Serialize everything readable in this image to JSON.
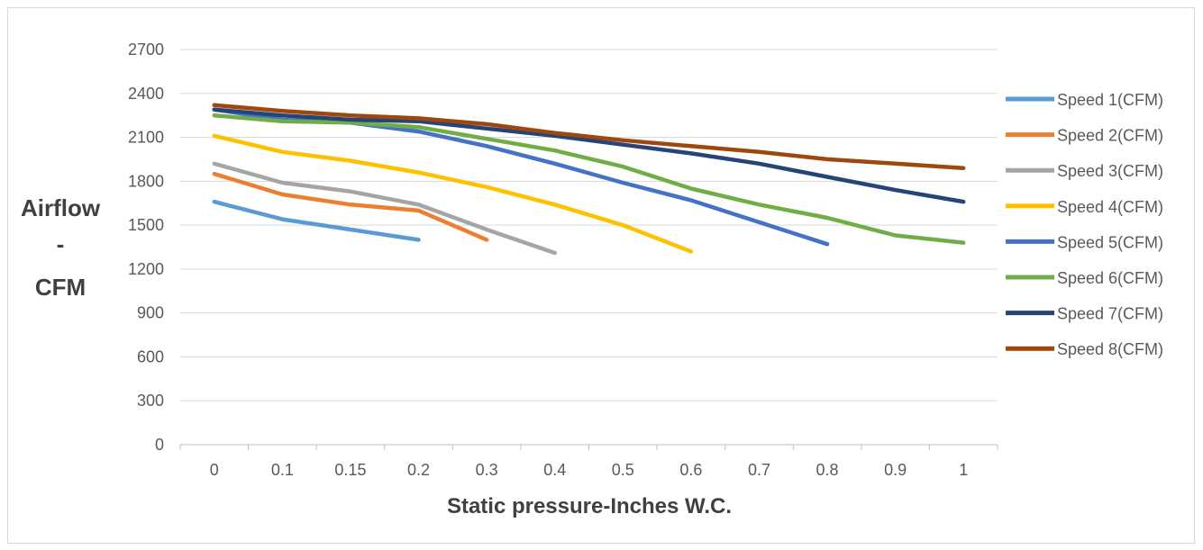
{
  "chart_data": {
    "type": "line",
    "title": "",
    "xlabel": "Static pressure-Inches W.C.",
    "ylabel": "Airflow - CFM",
    "ylabel_lines": [
      "Airflow",
      "-",
      "CFM"
    ],
    "categories": [
      "0",
      "0.1",
      "0.15",
      "0.2",
      "0.3",
      "0.4",
      "0.5",
      "0.6",
      "0.7",
      "0.8",
      "0.9",
      "1"
    ],
    "yticks": [
      0,
      300,
      600,
      900,
      1200,
      1500,
      1800,
      2100,
      2400,
      2700
    ],
    "ylim": [
      0,
      2700
    ],
    "grid": "horizontal",
    "legend_position": "right",
    "series": [
      {
        "name": "Speed 1(CFM)",
        "color": "#5b9bd5",
        "values": [
          1660,
          1540,
          1470,
          1400,
          null,
          null,
          null,
          null,
          null,
          null,
          null,
          null
        ]
      },
      {
        "name": "Speed 2(CFM)",
        "color": "#ed7d31",
        "values": [
          1850,
          1710,
          1640,
          1600,
          1400,
          null,
          null,
          null,
          null,
          null,
          null,
          null
        ]
      },
      {
        "name": "Speed 3(CFM)",
        "color": "#a5a5a5",
        "values": [
          1920,
          1790,
          1730,
          1640,
          1470,
          1310,
          null,
          null,
          null,
          null,
          null,
          null
        ]
      },
      {
        "name": "Speed 4(CFM)",
        "color": "#ffc000",
        "values": [
          2110,
          2000,
          1940,
          1860,
          1760,
          1640,
          1500,
          1320,
          null,
          null,
          null,
          null
        ]
      },
      {
        "name": "Speed 5(CFM)",
        "color": "#4472c4",
        "values": [
          2290,
          2220,
          2200,
          2140,
          2040,
          1920,
          1790,
          1670,
          1520,
          1370,
          null,
          null
        ]
      },
      {
        "name": "Speed 6(CFM)",
        "color": "#70ad47",
        "values": [
          2250,
          2210,
          2200,
          2170,
          2090,
          2010,
          1900,
          1750,
          1640,
          1550,
          1430,
          1380
        ]
      },
      {
        "name": "Speed 7(CFM)",
        "color": "#264478",
        "values": [
          2290,
          2250,
          2220,
          2210,
          2160,
          2110,
          2050,
          1990,
          1920,
          1830,
          1740,
          1660
        ]
      },
      {
        "name": "Speed 8(CFM)",
        "color": "#9e480e",
        "values": [
          2320,
          2280,
          2250,
          2230,
          2190,
          2130,
          2080,
          2040,
          2000,
          1950,
          1920,
          1890
        ]
      }
    ]
  }
}
